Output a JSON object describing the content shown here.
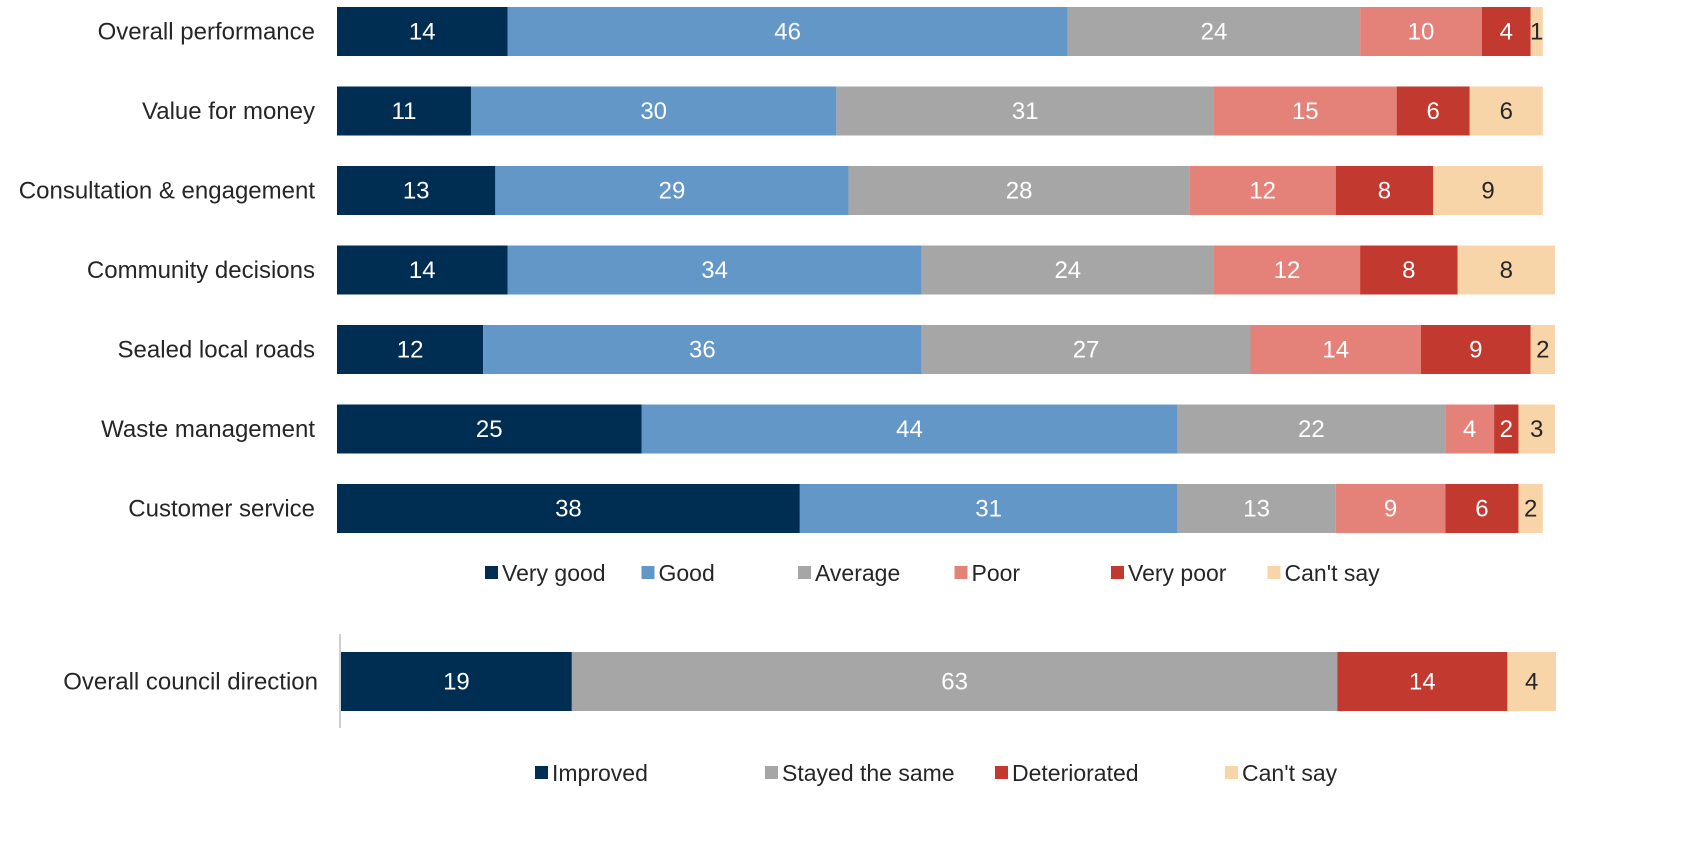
{
  "chart_data": [
    {
      "type": "bar",
      "orientation": "horizontal",
      "stacked": true,
      "categories": [
        "Overall performance",
        "Value for money",
        "Consultation & engagement",
        "Community decisions",
        "Sealed local roads",
        "Waste management",
        "Customer service"
      ],
      "series": [
        {
          "name": "Very good",
          "color": "#002e52",
          "values": [
            14,
            11,
            13,
            14,
            12,
            25,
            38
          ]
        },
        {
          "name": "Good",
          "color": "#6297c8",
          "values": [
            46,
            30,
            29,
            34,
            36,
            44,
            31
          ]
        },
        {
          "name": "Average",
          "color": "#a6a6a6",
          "values": [
            24,
            31,
            28,
            24,
            27,
            22,
            13
          ]
        },
        {
          "name": "Poor",
          "color": "#e4827a",
          "values": [
            10,
            15,
            12,
            12,
            14,
            4,
            9
          ]
        },
        {
          "name": "Very poor",
          "color": "#c1392f",
          "values": [
            4,
            6,
            8,
            8,
            9,
            2,
            6
          ]
        },
        {
          "name": "Can't say",
          "color": "#f8d4a9",
          "values": [
            1,
            6,
            9,
            8,
            2,
            3,
            2
          ]
        }
      ],
      "xlim": [
        0,
        100
      ],
      "legend": "bottom",
      "grid": false
    },
    {
      "type": "bar",
      "orientation": "horizontal",
      "stacked": true,
      "categories": [
        "Overall council direction"
      ],
      "series": [
        {
          "name": "Improved",
          "color": "#002e52",
          "values": [
            19
          ]
        },
        {
          "name": "Stayed the same",
          "color": "#a6a6a6",
          "values": [
            63
          ]
        },
        {
          "name": "Deteriorated",
          "color": "#c1392f",
          "values": [
            14
          ]
        },
        {
          "name": "Can't say",
          "color": "#f8d4a9",
          "values": [
            4
          ]
        }
      ],
      "xlim": [
        0,
        100
      ],
      "legend": "bottom",
      "grid": false
    }
  ],
  "label_colors": {
    "light_text": "#ffffff",
    "dark_text": "#262626"
  }
}
